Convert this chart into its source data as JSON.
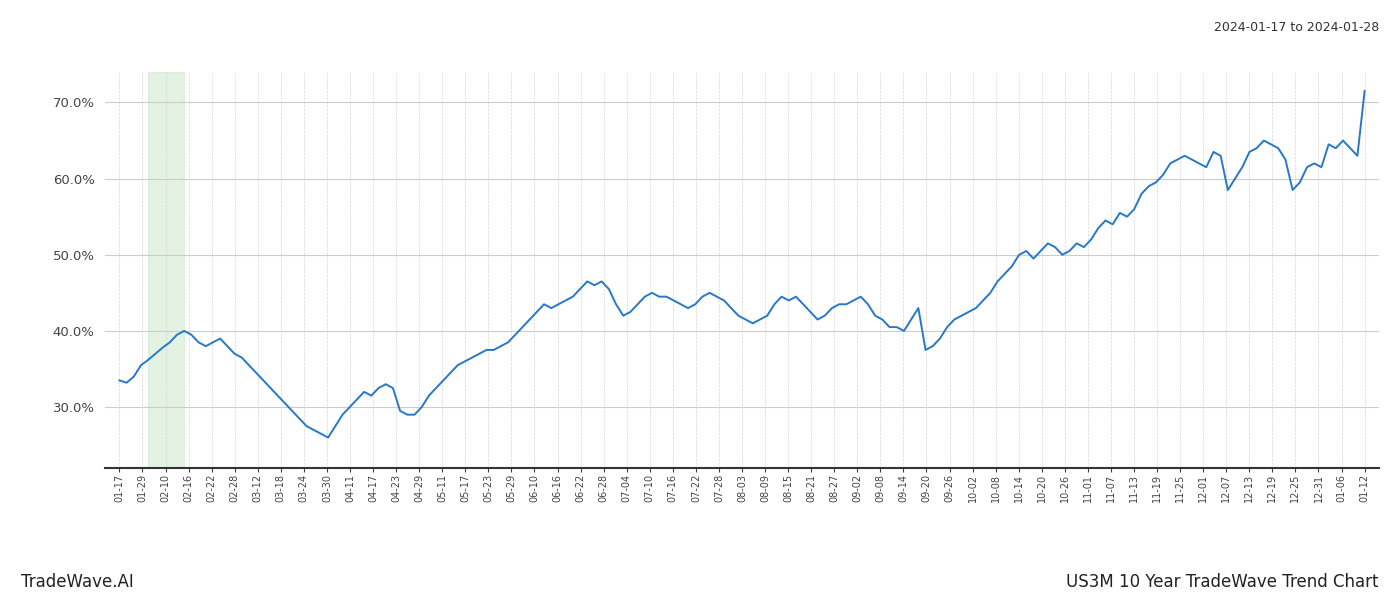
{
  "title_top_right": "2024-01-17 to 2024-01-28",
  "title_bottom_left": "TradeWave.AI",
  "title_bottom_right": "US3M 10 Year TradeWave Trend Chart",
  "line_color": "#2878c8",
  "line_width": 1.4,
  "highlight_color": "#c8e6c9",
  "highlight_alpha": 0.5,
  "ylim": [
    22,
    74
  ],
  "yticks": [
    30.0,
    40.0,
    50.0,
    60.0,
    70.0
  ],
  "background_color": "#ffffff",
  "grid_color": "#cccccc",
  "x_labels": [
    "01-17",
    "01-29",
    "02-10",
    "02-16",
    "02-22",
    "02-28",
    "03-12",
    "03-18",
    "03-24",
    "03-30",
    "04-11",
    "04-17",
    "04-23",
    "04-29",
    "05-11",
    "05-17",
    "05-23",
    "05-29",
    "06-10",
    "06-16",
    "06-22",
    "06-28",
    "07-04",
    "07-10",
    "07-16",
    "07-22",
    "07-28",
    "08-03",
    "08-09",
    "08-15",
    "08-21",
    "08-27",
    "09-02",
    "09-08",
    "09-14",
    "09-20",
    "09-26",
    "10-02",
    "10-08",
    "10-14",
    "10-20",
    "10-26",
    "11-01",
    "11-07",
    "11-13",
    "11-19",
    "11-25",
    "12-01",
    "12-07",
    "12-13",
    "12-19",
    "12-25",
    "12-31",
    "01-06",
    "01-12"
  ],
  "values": [
    33.5,
    33.2,
    34.0,
    35.5,
    36.2,
    37.0,
    37.8,
    38.5,
    39.5,
    40.0,
    39.5,
    38.5,
    38.0,
    38.5,
    39.0,
    38.0,
    37.0,
    36.5,
    35.5,
    34.5,
    33.5,
    32.5,
    31.5,
    30.5,
    29.5,
    28.5,
    27.5,
    27.0,
    26.5,
    26.0,
    27.5,
    29.0,
    30.0,
    31.0,
    32.0,
    31.5,
    32.5,
    33.0,
    32.5,
    29.5,
    29.0,
    29.0,
    30.0,
    31.5,
    32.5,
    33.5,
    34.5,
    35.5,
    36.0,
    36.5,
    37.0,
    37.5,
    37.5,
    38.0,
    38.5,
    39.5,
    40.5,
    41.5,
    42.5,
    43.5,
    43.0,
    43.5,
    44.0,
    44.5,
    45.5,
    46.5,
    46.0,
    46.5,
    45.5,
    43.5,
    42.0,
    42.5,
    43.5,
    44.5,
    45.0,
    44.5,
    44.5,
    44.0,
    43.5,
    43.0,
    43.5,
    44.5,
    45.0,
    44.5,
    44.0,
    43.0,
    42.0,
    41.5,
    41.0,
    41.5,
    42.0,
    43.5,
    44.5,
    44.0,
    44.5,
    43.5,
    42.5,
    41.5,
    42.0,
    43.0,
    43.5,
    43.5,
    44.0,
    44.5,
    43.5,
    42.0,
    41.5,
    40.5,
    40.5,
    40.0,
    41.5,
    43.0,
    37.5,
    38.0,
    39.0,
    40.5,
    41.5,
    42.0,
    42.5,
    43.0,
    44.0,
    45.0,
    46.5,
    47.5,
    48.5,
    50.0,
    50.5,
    49.5,
    50.5,
    51.5,
    51.0,
    50.0,
    50.5,
    51.5,
    51.0,
    52.0,
    53.5,
    54.5,
    54.0,
    55.5,
    55.0,
    56.0,
    58.0,
    59.0,
    59.5,
    60.5,
    62.0,
    62.5,
    63.0,
    62.5,
    62.0,
    61.5,
    63.5,
    63.0,
    58.5,
    60.0,
    61.5,
    63.5,
    64.0,
    65.0,
    64.5,
    64.0,
    62.5,
    58.5,
    59.5,
    61.5,
    62.0,
    61.5,
    64.5,
    64.0,
    65.0,
    64.0,
    63.0,
    71.5
  ]
}
